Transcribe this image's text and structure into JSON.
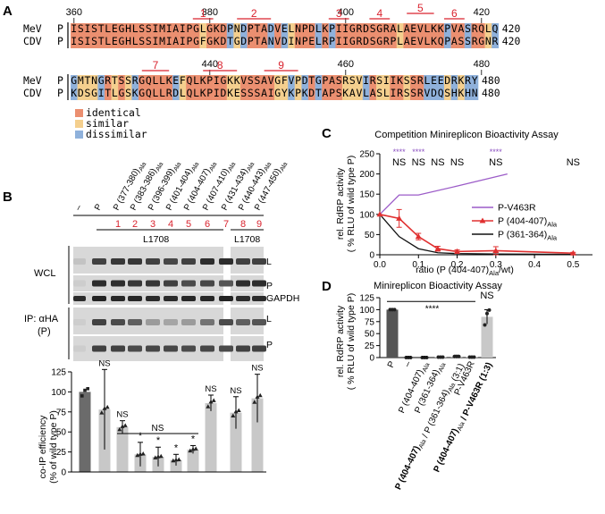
{
  "panels": {
    "A": "A",
    "B": "B",
    "C": "C",
    "D": "D"
  },
  "alignment": {
    "species": [
      "MeV",
      "CDV"
    ],
    "p_label": "P",
    "block1": {
      "start_number": "360",
      "tick_numbers": [
        "360",
        "380",
        "400",
        "420"
      ],
      "end_numbers": [
        "420",
        "420"
      ],
      "seq_mev": "ISISTLEGHLSSIMIAIPGLGKDPNDPTADVELNPDLKPIIGRDSGRALAEVLKKPVASRQLQ",
      "seq_cdv": "ISISTLEGHLSSIMIAIPGFGKDTGDPTANVDINPELRPIIGRDSGRPLAEVLKQPASSRGNR",
      "colors": "IIIIIIIIIIIIIIIIIIISIIIDSDIIIDIDSIIIDIDIIIIIIIIISIIIIIIDIIDIISDD",
      "motifs": [
        "1",
        "2",
        "3",
        "4",
        "5",
        "6"
      ]
    },
    "block2": {
      "tick_numbers": [
        "440",
        "460",
        "480"
      ],
      "end_numbers": [
        "480",
        "480"
      ],
      "seq_mev": "GMTNGRTSSRGQLLKEFQLKPIGKKVSSAVGFVPDTGPASRSVIRSIIKSSRLEEDRKRY",
      "seq_cdv": "KDSGITLGSKGQLLRDLQLKPIDKESSSAIGYKPKDTAPSKAVLASLIRSSRVDQSHKHN",
      "colors": "DSSSDISISDIIIIIDSIIIIIISSIIIIISSDSDIDIIISSSDISSIISIIDDDSDSDD",
      "motifs": [
        "7",
        "8",
        "9"
      ]
    },
    "legend": [
      "identical",
      "similar",
      "dissimilar"
    ],
    "colors": {
      "identical": "#eb8f70",
      "similar": "#f4cf8e",
      "dissimilar": "#8fb1db"
    }
  },
  "blot": {
    "lane_labels": [
      "–",
      "P",
      "P (377-380)Ala",
      "P (383-386)Ala",
      "P (396-399)Ala",
      "P (401-404)Ala",
      "P (404-407)Ala",
      "P (407-410)Ala",
      "P (431-434)Ala",
      "P (440-443)Ala",
      "P (447-450)Ala"
    ],
    "lane_numbers": [
      "1",
      "2",
      "3",
      "4",
      "5",
      "6",
      "7",
      "8",
      "9"
    ],
    "l1708": "L1708",
    "wcl": "WCL",
    "ip": "IP: αHA",
    "ip_sub": "(P)",
    "right_labels": [
      "L",
      "P",
      "GAPDH",
      "L",
      "P"
    ]
  },
  "chart_data": [
    {
      "type": "bar",
      "panel": "B",
      "categories": [
        "–",
        "P",
        "1",
        "2",
        "3",
        "4",
        "5",
        "6",
        "7",
        "8",
        "9"
      ],
      "values": [
        null,
        100,
        78,
        56,
        22,
        19,
        15,
        28,
        86,
        74,
        92
      ],
      "errors": [
        0,
        0,
        50,
        8,
        15,
        12,
        7,
        5,
        10,
        20,
        30
      ],
      "significance": [
        "",
        "",
        "NS",
        "NS",
        "*",
        "*",
        "*",
        "*",
        "NS",
        "NS",
        "NS"
      ],
      "bracket_label": "NS",
      "ylabel": "co-IP efficiency",
      "ylabel2": "(% of wild type P)",
      "ylim": [
        0,
        125
      ],
      "yticks": [
        "0",
        "25",
        "50",
        "75",
        "100",
        "125"
      ]
    },
    {
      "type": "line",
      "panel": "C",
      "title": "Competition Minireplicon Bioactivity Assay",
      "xlabel": "ratio (P (404-407)Ala/wt)",
      "ylabel": "rel. RdRP activity",
      "ylabel2": "( % RLU of wild type P)",
      "xlim": [
        0,
        0.55
      ],
      "ylim": [
        0,
        250
      ],
      "xticks": [
        "0.0",
        "0.1",
        "0.2",
        "0.3",
        "0.4",
        "0.5"
      ],
      "yticks": [
        "0",
        "50",
        "100",
        "150",
        "200",
        "250"
      ],
      "series": [
        {
          "name": "P-V463R",
          "x": [
            0,
            0.05,
            0.1,
            0.2,
            0.33
          ],
          "y": [
            100,
            148,
            148,
            170,
            200
          ],
          "color": "#9c5cc8"
        },
        {
          "name": "P (404-407)Ala",
          "x": [
            0,
            0.05,
            0.1,
            0.15,
            0.2,
            0.3,
            0.5
          ],
          "y": [
            100,
            90,
            45,
            15,
            8,
            10,
            4
          ],
          "err": [
            0,
            22,
            8,
            6,
            4,
            10,
            2
          ],
          "color": "#e03030"
        },
        {
          "name": "P (361-364)Ala",
          "x": [
            0,
            0.05,
            0.1,
            0.15,
            0.2,
            0.3,
            0.5
          ],
          "y": [
            100,
            45,
            15,
            5,
            3,
            2,
            1
          ],
          "color": "#111111"
        }
      ],
      "top_annotations": [
        {
          "x": 0.05,
          "stars": "****",
          "ns": "NS"
        },
        {
          "x": 0.1,
          "stars": "****",
          "ns": "NS"
        },
        {
          "x": 0.15,
          "stars": "",
          "ns": "NS"
        },
        {
          "x": 0.2,
          "stars": "",
          "ns": "NS"
        },
        {
          "x": 0.3,
          "stars": "****",
          "ns": "NS"
        },
        {
          "x": 0.5,
          "stars": "",
          "ns": "NS"
        }
      ]
    },
    {
      "type": "bar",
      "panel": "D",
      "title": "Minireplicon Bioactivity Assay",
      "ylabel": "rel. RdRP activity",
      "ylabel2": "( % RLU of wild type P)",
      "ylim": [
        0,
        125
      ],
      "yticks": [
        "0",
        "25",
        "50",
        "75",
        "100",
        "125"
      ],
      "categories": [
        "P",
        "–",
        "P (404-407)Ala",
        "P (361-364)Ala",
        "P (404-407)Ala / P (361-364)Ala (3:1)",
        "P-V463R",
        "P (404-407)Ala / P-V463R (1:3)"
      ],
      "values": [
        100,
        0,
        0,
        1,
        2,
        1,
        85
      ],
      "errors": [
        0,
        0,
        0,
        0,
        3,
        0,
        15
      ],
      "significance_bracket": "****",
      "ns_label": "NS"
    }
  ]
}
